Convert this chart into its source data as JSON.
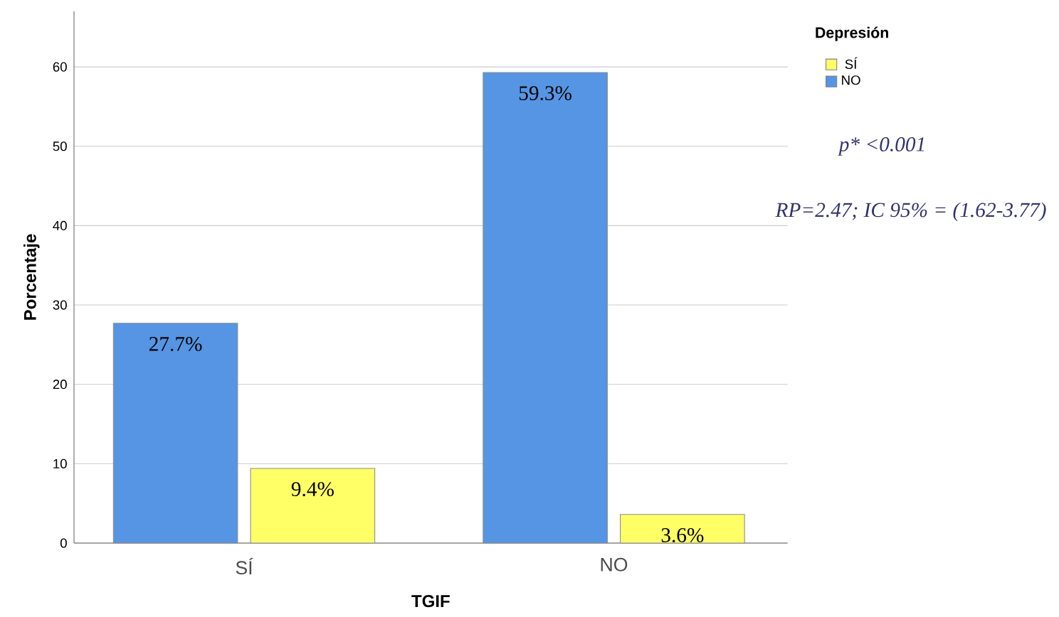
{
  "chart_data": {
    "type": "bar",
    "xlabel": "TGIF",
    "ylabel": "Porcentaje",
    "legend_title": "Depresión",
    "categories": [
      "SÍ",
      "NO"
    ],
    "series": [
      {
        "name": "NO",
        "color": "#5595e3",
        "values": [
          27.7,
          59.3
        ],
        "value_labels": [
          "27.7%",
          "59.3%"
        ]
      },
      {
        "name": "SÍ",
        "color": "#ffff66",
        "values": [
          9.4,
          3.6
        ],
        "value_labels": [
          "9.4%",
          "3.6%"
        ]
      }
    ],
    "ylim": [
      0,
      67
    ],
    "yticks": [
      0,
      10,
      20,
      30,
      40,
      50,
      60
    ],
    "grid": "y",
    "legend": "top right",
    "annotations": [
      "p* <0.001",
      "RP=2.47; IC 95% = (1.62-3.77)"
    ]
  }
}
